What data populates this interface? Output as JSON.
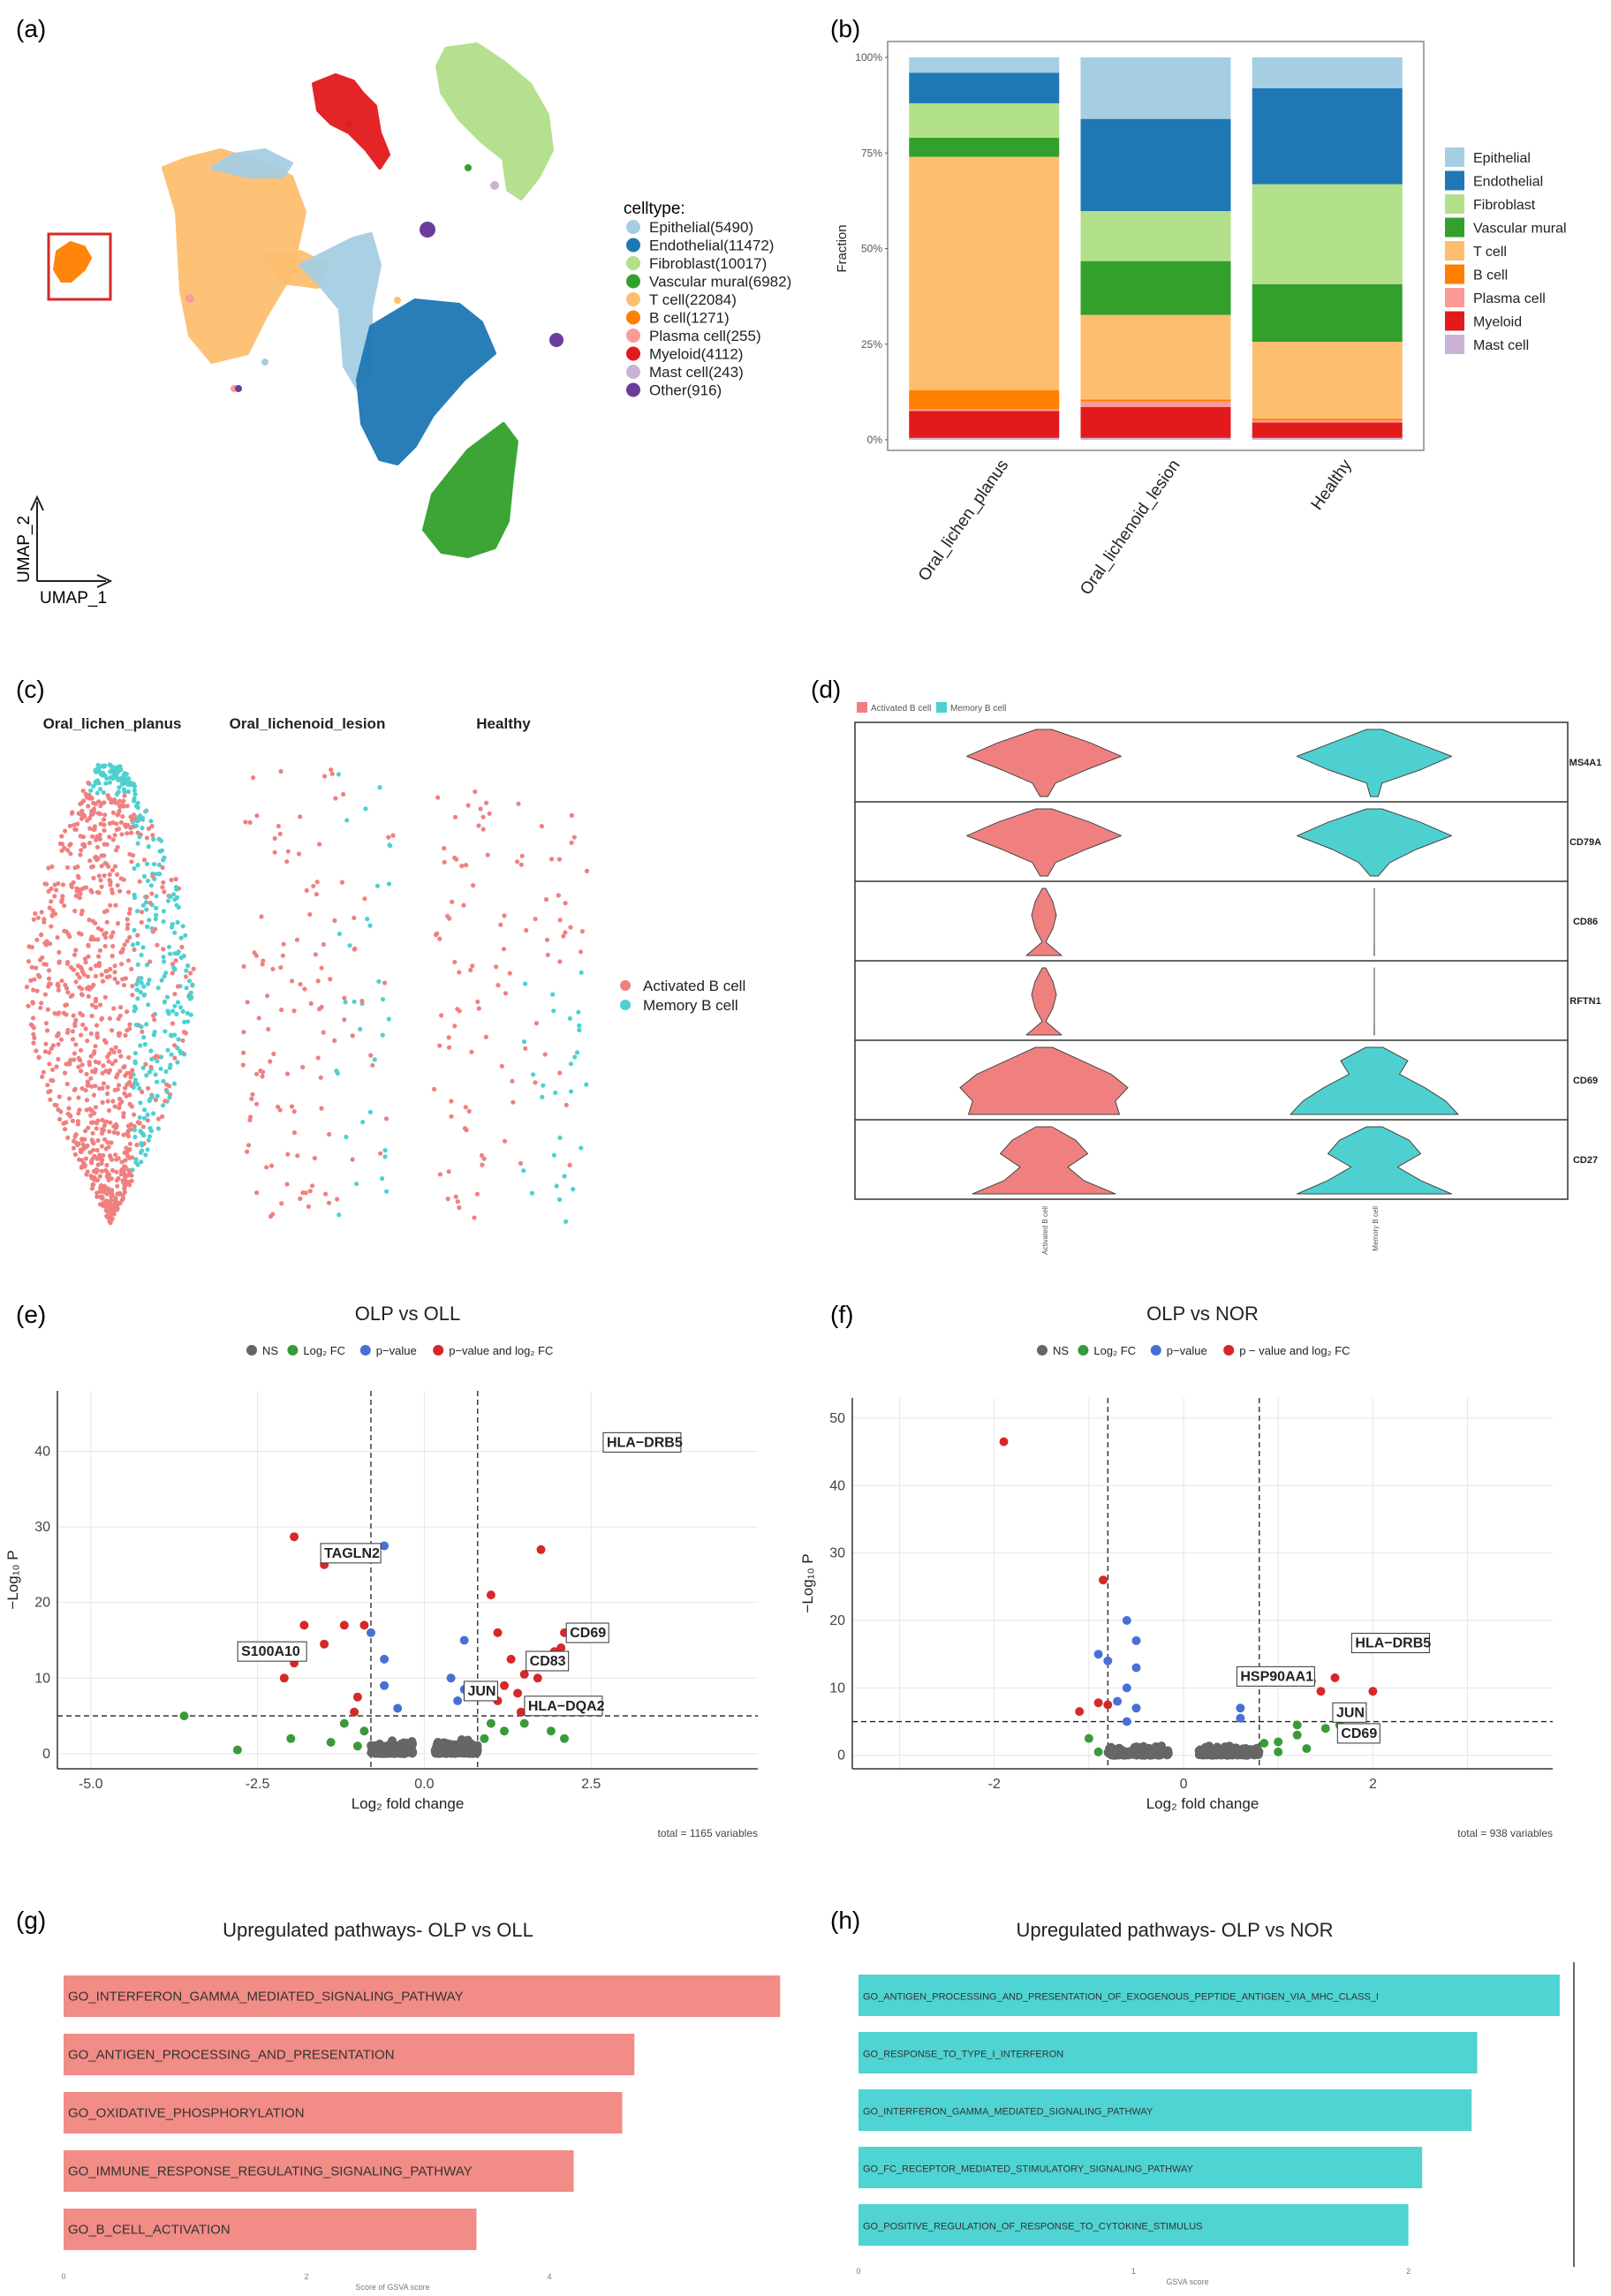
{
  "panel_labels": {
    "a": "(a)",
    "b": "(b)",
    "c": "(c)",
    "d": "(d)",
    "e": "(e)",
    "f": "(f)",
    "g": "(g)",
    "h": "(h)"
  },
  "colors": {
    "epithelial": "#a6cee3",
    "endothelial": "#1f78b4",
    "fibroblast": "#b2df8a",
    "vascular": "#33a02c",
    "tcell": "#fdbf6f",
    "bcell": "#ff7f00",
    "plasma": "#fb9a99",
    "myeloid": "#e31a1c",
    "mast": "#cab2d6",
    "other": "#6a3d9a",
    "activated": "#f08080",
    "memory": "#4fd0d0",
    "ns": "#666666",
    "fc": "#3a9a3a",
    "pval": "#4a6fd4",
    "both": "#d62828"
  },
  "umap": {
    "legend_title": "celltype:",
    "legend": [
      "Epithelial(5490)",
      "Endothelial(11472)",
      "Fibroblast(10017)",
      "Vascular mural(6982)",
      "T cell(22084)",
      "B cell(1271)",
      "Plasma cell(255)",
      "Myeloid(4112)",
      "Mast cell(243)",
      "Other(916)"
    ],
    "xaxis": "UMAP_1",
    "yaxis": "UMAP_2"
  },
  "chart_data": [
    {
      "id": "b",
      "type": "bar",
      "stacked": true,
      "title": "",
      "ylabel": "Fraction",
      "xlabel": "",
      "categories": [
        "Oral_lichen_planus",
        "Oral_lichenoid_lesion",
        "Healthy"
      ],
      "ylim": [
        0,
        1
      ],
      "yticks": [
        "0%",
        "25%",
        "50%",
        "75%",
        "100%"
      ],
      "series": [
        {
          "name": "Mast cell",
          "values": [
            0.005,
            0.005,
            0.005
          ]
        },
        {
          "name": "Myeloid",
          "values": [
            0.07,
            0.08,
            0.04
          ]
        },
        {
          "name": "Plasma cell",
          "values": [
            0.005,
            0.015,
            0.005
          ]
        },
        {
          "name": "B cell",
          "values": [
            0.05,
            0.005,
            0.005
          ]
        },
        {
          "name": "T cell",
          "values": [
            0.61,
            0.22,
            0.2
          ]
        },
        {
          "name": "Vascular mural",
          "values": [
            0.05,
            0.14,
            0.15
          ]
        },
        {
          "name": "Fibroblast",
          "values": [
            0.09,
            0.13,
            0.26
          ]
        },
        {
          "name": "Endothelial",
          "values": [
            0.08,
            0.24,
            0.25
          ]
        },
        {
          "name": "Epithelial",
          "values": [
            0.04,
            0.16,
            0.08
          ]
        }
      ],
      "legend": [
        "Epithelial",
        "Endothelial",
        "Fibroblast",
        "Vascular mural",
        "T cell",
        "B cell",
        "Plasma cell",
        "Myeloid",
        "Mast cell"
      ]
    },
    {
      "id": "c",
      "type": "scatter",
      "facets": [
        "Oral_lichen_planus",
        "Oral_lichenoid_lesion",
        "Healthy"
      ],
      "legend": [
        "Activated B cell",
        "Memory B cell"
      ]
    },
    {
      "id": "d",
      "type": "violin",
      "legend": [
        "Activated B cell",
        "Memory B cell"
      ],
      "genes": [
        "MS4A1",
        "CD79A",
        "CD86",
        "RFTN1",
        "CD69",
        "CD27"
      ],
      "groups": [
        "Activated B cell",
        "Memory B cell"
      ]
    },
    {
      "id": "e",
      "type": "scatter",
      "title": "OLP vs OLL",
      "legend": [
        "NS",
        "Log₂ FC",
        "p−value",
        "p−value and log₂ FC"
      ],
      "xlabel": "Log₂ fold change",
      "ylabel": "−Log₁₀ P",
      "xlim": [
        -5.5,
        5
      ],
      "ylim": [
        -2,
        48
      ],
      "xticks": [
        "-5.0",
        "-2.5",
        "0.0",
        "2.5"
      ],
      "yticks": [
        "0",
        "10",
        "20",
        "30",
        "40"
      ],
      "footer": "total = 1165 variables",
      "labels": [
        {
          "text": "HLA−DRB5",
          "x": 3.0,
          "y": 41.3
        },
        {
          "text": "TAGLN2",
          "x": -1.5,
          "y": 25
        },
        {
          "text": "S100A10",
          "x": -1.95,
          "y": 12
        },
        {
          "text": "CD69",
          "x": 2.05,
          "y": 14
        },
        {
          "text": "CD83",
          "x": 1.5,
          "y": 10.5
        },
        {
          "text": "JUN",
          "x": 1.1,
          "y": 7
        },
        {
          "text": "HLA−DQA2",
          "x": 1.45,
          "y": 5.5
        }
      ]
    },
    {
      "id": "f",
      "type": "scatter",
      "title": "OLP vs NOR",
      "legend": [
        "NS",
        "Log₂ FC",
        "p−value",
        "p − value and log₂ FC"
      ],
      "xlabel": "Log₂ fold change",
      "ylabel": "−Log₁₀ P",
      "xlim": [
        -3.5,
        3.9
      ],
      "ylim": [
        -2,
        53
      ],
      "xticks": [
        "-2",
        "0",
        "2"
      ],
      "yticks": [
        "0",
        "10",
        "20",
        "30",
        "40",
        "50"
      ],
      "footer": "total = 938 variables",
      "labels": [
        {
          "text": "HLA−DRB5",
          "x": 2.0,
          "y": 16
        },
        {
          "text": "HSP90AA1",
          "x": 1.3,
          "y": 10
        },
        {
          "text": "JUN",
          "x": 1.8,
          "y": 7
        },
        {
          "text": "CD69",
          "x": 1.85,
          "y": 6
        }
      ]
    },
    {
      "id": "g",
      "type": "bar",
      "orientation": "horizontal",
      "title": "Upregulated pathways- OLP vs OLL",
      "xlabel": "Score of GSVA score",
      "categories": [
        "GO_INTERFERON_GAMMA_MEDIATED_SIGNALING_PATHWAY",
        "GO_ANTIGEN_PROCESSING_AND_PRESENTATION",
        "GO_OXIDATIVE_PHOSPHORYLATION",
        "GO_IMMUNE_RESPONSE_REGULATING_SIGNALING_PATHWAY",
        "GO_B_CELL_ACTIVATION"
      ],
      "values": [
        5.9,
        4.7,
        4.6,
        4.2,
        3.4
      ],
      "xlim": [
        0,
        6
      ],
      "xticks": [
        "0",
        "2",
        "4"
      ]
    },
    {
      "id": "h",
      "type": "bar",
      "orientation": "horizontal",
      "title": "Upregulated pathways- OLP vs NOR",
      "xlabel": "GSVA score",
      "categories": [
        "GO_ANTIGEN_PROCESSING_AND_PRESENTATION_OF_EXOGENOUS_PEPTIDE_ANTIGEN_VIA_MHC_CLASS_I",
        "GO_RESPONSE_TO_TYPE_I_INTERFERON",
        "GO_INTERFERON_GAMMA_MEDIATED_SIGNALING_PATHWAY",
        "GO_FC_RECEPTOR_MEDIATED_STIMULATORY_SIGNALING_PATHWAY",
        "GO_POSITIVE_REGULATION_OF_RESPONSE_TO_CYTOKINE_STIMULUS"
      ],
      "values": [
        2.55,
        2.25,
        2.23,
        2.05,
        2.0
      ],
      "xlim": [
        0,
        2.65
      ],
      "xticks": [
        "0",
        "1",
        "2"
      ]
    }
  ]
}
